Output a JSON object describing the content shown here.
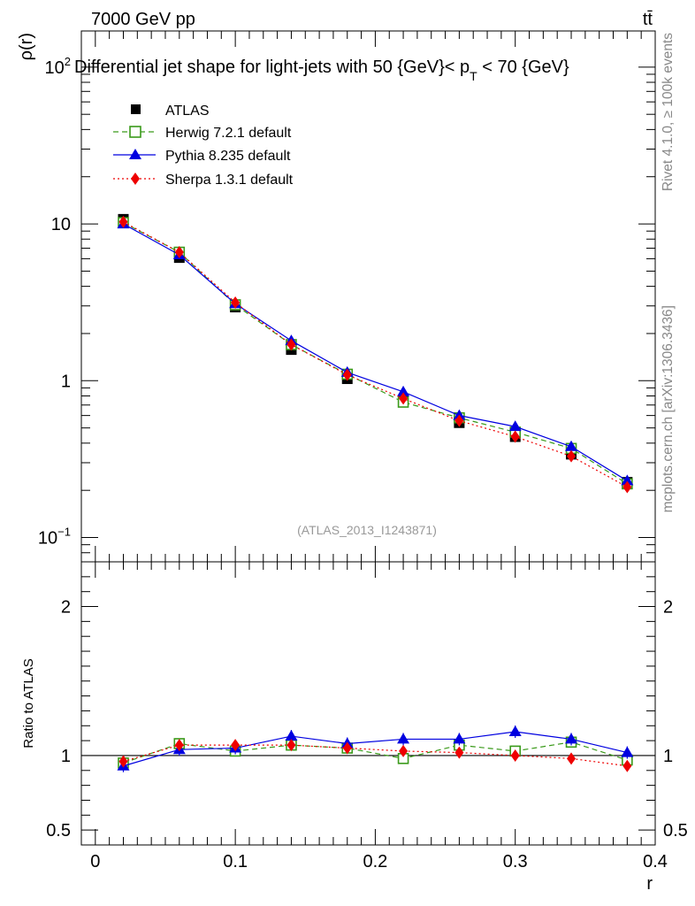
{
  "header": {
    "left": "7000 GeV pp",
    "right": "tt̄"
  },
  "side_text": {
    "top": "Rivet 4.1.0, ≥ 100k events",
    "bottom": "mcplots.cern.ch [arXiv:1306.3436]"
  },
  "colors": {
    "atlas": "#000000",
    "herwig": "#3a9a1a",
    "pythia": "#0000e0",
    "sherpa": "#ee0000",
    "watermark": "#999999"
  },
  "chart_data": [
    {
      "type": "line",
      "panel": "main",
      "title": "Differential jet shape for light-jets with 50 {GeV}< p_T < 70 {GeV}",
      "title_parts": {
        "main": "Differential jet shape for light-jets with 50 {GeV}< p",
        "sub": "T",
        "tail": " < 70 {GeV}"
      },
      "ylabel": "ρ(r)",
      "yscale": "log",
      "ylim": [
        0.07,
        170
      ],
      "xlim": [
        -0.01,
        0.4
      ],
      "yticks": [
        {
          "label": "10",
          "sup": "2",
          "value": 100
        },
        {
          "label": "10",
          "sup": "",
          "value": 10
        },
        {
          "label": "1",
          "sup": "",
          "value": 1
        },
        {
          "label": "10",
          "sup": "−1",
          "value": 0.1
        }
      ],
      "watermark": "(ATLAS_2013_I1243871)",
      "x": [
        0.02,
        0.06,
        0.1,
        0.14,
        0.18,
        0.22,
        0.26,
        0.3,
        0.34,
        0.38
      ],
      "series": [
        {
          "name": "ATLAS",
          "key": "atlas",
          "marker": "square-filled",
          "values": [
            10.7,
            6.1,
            2.95,
            1.58,
            1.03,
            0.75,
            0.54,
            0.44,
            0.34,
            0.225
          ]
        },
        {
          "name": "Herwig 7.2.1 default",
          "key": "herwig",
          "marker": "square-open",
          "dash": "6,4",
          "values": [
            10.2,
            6.6,
            3.05,
            1.7,
            1.1,
            0.73,
            0.58,
            0.47,
            0.37,
            0.22
          ]
        },
        {
          "name": "Pythia 8.235 default",
          "key": "pythia",
          "marker": "triangle",
          "dash": "",
          "values": [
            10.0,
            6.35,
            3.1,
            1.8,
            1.13,
            0.85,
            0.6,
            0.51,
            0.38,
            0.23
          ]
        },
        {
          "name": "Sherpa 1.3.1 default",
          "key": "sherpa",
          "marker": "diamond",
          "dash": "2,3",
          "values": [
            10.3,
            6.6,
            3.15,
            1.7,
            1.09,
            0.77,
            0.555,
            0.44,
            0.33,
            0.21
          ]
        }
      ]
    },
    {
      "type": "line",
      "panel": "ratio",
      "ylabel": "Ratio to ATLAS",
      "xlabel": "r",
      "ylim": [
        0.4,
        2.3
      ],
      "xlim": [
        -0.01,
        0.4
      ],
      "reference": 1,
      "yticks": [
        {
          "label": "2",
          "value": 2
        },
        {
          "label": "1",
          "value": 1
        },
        {
          "label": "0.5",
          "value": 0.5
        }
      ],
      "xticks": [
        {
          "label": "0",
          "value": 0
        },
        {
          "label": "0.1",
          "value": 0.1
        },
        {
          "label": "0.2",
          "value": 0.2
        },
        {
          "label": "0.3",
          "value": 0.3
        },
        {
          "label": "0.4",
          "value": 0.4
        }
      ],
      "x": [
        0.02,
        0.06,
        0.1,
        0.14,
        0.18,
        0.22,
        0.26,
        0.3,
        0.34,
        0.38
      ],
      "series": [
        {
          "name": "Herwig 7.2.1 default",
          "key": "herwig",
          "marker": "square-open",
          "dash": "6,4",
          "values": [
            0.95,
            1.08,
            1.03,
            1.07,
            1.05,
            0.98,
            1.07,
            1.03,
            1.09,
            0.97
          ]
        },
        {
          "name": "Pythia 8.235 default",
          "key": "pythia",
          "marker": "triangle",
          "dash": "",
          "values": [
            0.93,
            1.04,
            1.05,
            1.13,
            1.08,
            1.11,
            1.11,
            1.16,
            1.11,
            1.02
          ]
        },
        {
          "name": "Sherpa 1.3.1 default",
          "key": "sherpa",
          "marker": "diamond",
          "dash": "2,3",
          "values": [
            0.96,
            1.07,
            1.07,
            1.07,
            1.05,
            1.03,
            1.02,
            1.0,
            0.98,
            0.93
          ]
        }
      ]
    }
  ]
}
